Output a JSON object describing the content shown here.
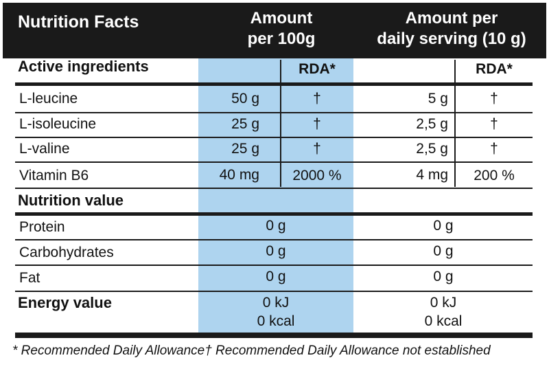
{
  "header": {
    "title": "Nutrition Facts",
    "amount_line1": "Amount",
    "amount_line2": "per 100g",
    "serving_line1": "Amount per",
    "serving_line2": "daily serving (10 g)"
  },
  "active_header": {
    "label": "Active ingredients",
    "rda1": "RDA*",
    "rda2": "RDA*"
  },
  "active_rows": [
    {
      "name": "L-leucine",
      "per100": "50 g",
      "rda1": "†",
      "serving": "5 g",
      "rda2": "†"
    },
    {
      "name": "L-isoleucine",
      "per100": "25 g",
      "rda1": "†",
      "serving": "2,5 g",
      "rda2": "†"
    },
    {
      "name": "L-valine",
      "per100": "25 g",
      "rda1": "†",
      "serving": "2,5 g",
      "rda2": "†"
    },
    {
      "name": "Vitamin B6",
      "per100": "40 mg",
      "rda1": "2000 %",
      "serving": "4 mg",
      "rda2": "200 %"
    }
  ],
  "nutrition_header": "Nutrition value",
  "nutrition_rows": [
    {
      "name": "Protein",
      "per100": "0 g",
      "serving": "0 g"
    },
    {
      "name": "Carbohydrates",
      "per100": "0 g",
      "serving": "0 g"
    },
    {
      "name": "Fat",
      "per100": "0 g",
      "serving": "0 g"
    }
  ],
  "energy": {
    "label": "Energy value",
    "per100_kj": "0 kJ",
    "per100_kcal": "0 kcal",
    "serving_kj": "0 kJ",
    "serving_kcal": "0 kcal"
  },
  "footer": "* Recommended Daily Allowance† Recommended Daily Allowance not established",
  "colors": {
    "header_bg": "#1a1a1a",
    "highlight_blue": "#aed4ef",
    "lines": "#1a1a1a"
  }
}
